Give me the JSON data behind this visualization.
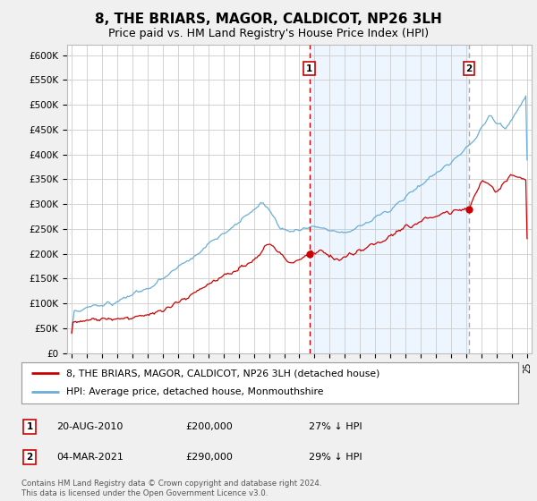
{
  "title": "8, THE BRIARS, MAGOR, CALDICOT, NP26 3LH",
  "subtitle": "Price paid vs. HM Land Registry's House Price Index (HPI)",
  "title_fontsize": 11,
  "subtitle_fontsize": 9,
  "ylabel_ticks": [
    "£0",
    "£50K",
    "£100K",
    "£150K",
    "£200K",
    "£250K",
    "£300K",
    "£350K",
    "£400K",
    "£450K",
    "£500K",
    "£550K",
    "£600K"
  ],
  "ytick_values": [
    0,
    50000,
    100000,
    150000,
    200000,
    250000,
    300000,
    350000,
    400000,
    450000,
    500000,
    550000,
    600000
  ],
  "ylim": [
    0,
    620000
  ],
  "hpi_color": "#6aaed6",
  "hpi_fill_color": "#ddeeff",
  "price_color": "#cc0000",
  "vline1_color": "#cc0000",
  "vline2_color": "#aaaaaa",
  "background_color": "#f0f0f0",
  "plot_bg_color": "#ffffff",
  "grid_color": "#cccccc",
  "marker1_year": 2010.65,
  "marker2_year": 2021.17,
  "marker1_price": 200000,
  "marker2_price": 290000,
  "legend_label1": "8, THE BRIARS, MAGOR, CALDICOT, NP26 3LH (detached house)",
  "legend_label2": "HPI: Average price, detached house, Monmouthshire",
  "table_row1": [
    "1",
    "20-AUG-2010",
    "£200,000",
    "27% ↓ HPI"
  ],
  "table_row2": [
    "2",
    "04-MAR-2021",
    "£290,000",
    "29% ↓ HPI"
  ],
  "footer": "Contains HM Land Registry data © Crown copyright and database right 2024.\nThis data is licensed under the Open Government Licence v3.0.",
  "x_start_year": 1995,
  "x_end_year": 2025
}
